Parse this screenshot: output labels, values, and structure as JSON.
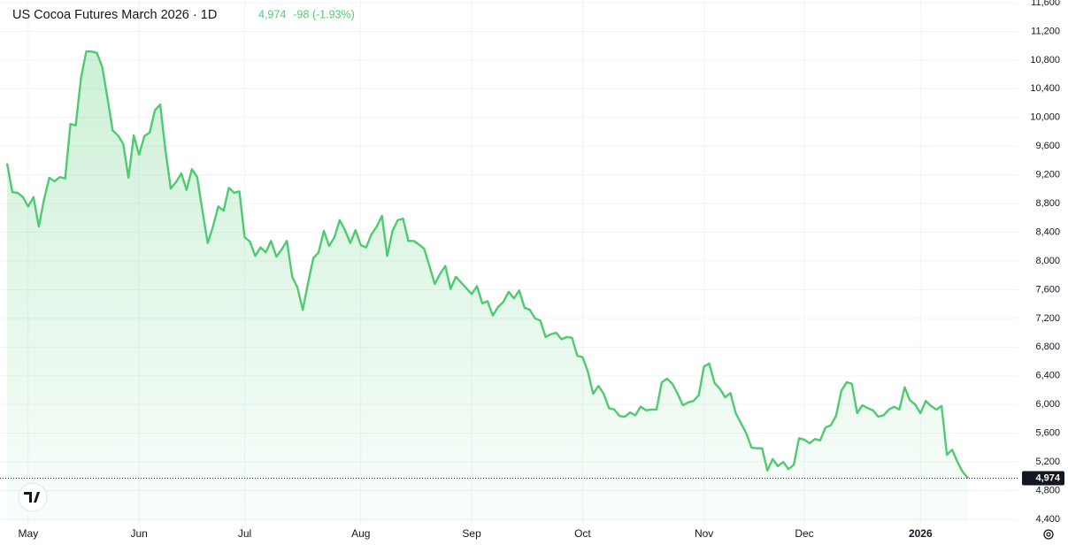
{
  "chart_data": {
    "type": "area",
    "title": "US Cocoa Futures March 2026 · 1D",
    "last_label": "4,974",
    "change_label": "-98 (-1.93%)",
    "color": "#4ecb71",
    "grid": true,
    "ylim": [
      4400,
      11600
    ],
    "yticks": [
      {
        "value": 4400,
        "label": "4,400"
      },
      {
        "value": 4800,
        "label": "4,800"
      },
      {
        "value": 5200,
        "label": "5,200"
      },
      {
        "value": 5600,
        "label": "5,600"
      },
      {
        "value": 6000,
        "label": "6,000"
      },
      {
        "value": 6400,
        "label": "6,400"
      },
      {
        "value": 6800,
        "label": "6,800"
      },
      {
        "value": 7200,
        "label": "7,200"
      },
      {
        "value": 7600,
        "label": "7,600"
      },
      {
        "value": 8000,
        "label": "8,000"
      },
      {
        "value": 8400,
        "label": "8,400"
      },
      {
        "value": 8800,
        "label": "8,800"
      },
      {
        "value": 9200,
        "label": "9,200"
      },
      {
        "value": 9600,
        "label": "9,600"
      },
      {
        "value": 10000,
        "label": "10,000"
      },
      {
        "value": 10400,
        "label": "10,400"
      },
      {
        "value": 10800,
        "label": "10,800"
      },
      {
        "value": 11200,
        "label": "11,200"
      },
      {
        "value": 11600,
        "label": "11,600"
      }
    ],
    "categories": [
      null,
      null,
      null,
      null,
      "May",
      null,
      null,
      null,
      null,
      null,
      null,
      null,
      null,
      null,
      null,
      null,
      null,
      null,
      null,
      null,
      null,
      null,
      null,
      null,
      null,
      "Jun",
      null,
      null,
      null,
      null,
      null,
      null,
      null,
      null,
      null,
      null,
      null,
      null,
      null,
      null,
      null,
      null,
      null,
      null,
      null,
      "Jul",
      null,
      null,
      null,
      null,
      null,
      null,
      null,
      null,
      null,
      null,
      null,
      null,
      null,
      null,
      null,
      null,
      null,
      null,
      null,
      null,
      null,
      "Aug",
      null,
      null,
      null,
      null,
      null,
      null,
      null,
      null,
      null,
      null,
      null,
      null,
      null,
      null,
      null,
      null,
      null,
      null,
      null,
      null,
      "Sep",
      null,
      null,
      null,
      null,
      null,
      null,
      null,
      null,
      null,
      null,
      null,
      null,
      null,
      null,
      null,
      null,
      null,
      null,
      null,
      null,
      "Oct",
      null,
      null,
      null,
      null,
      null,
      null,
      null,
      null,
      null,
      null,
      null,
      null,
      null,
      null,
      null,
      null,
      null,
      null,
      null,
      null,
      null,
      null,
      "Nov",
      null,
      null,
      null,
      null,
      null,
      null,
      null,
      null,
      null,
      null,
      null,
      null,
      null,
      null,
      null,
      null,
      null,
      null,
      "Dec",
      null,
      null,
      null,
      null,
      null,
      null,
      null,
      null,
      null,
      null,
      null,
      null,
      null,
      null,
      null,
      null,
      null,
      null,
      null,
      null,
      null,
      "2026",
      null,
      null,
      null,
      null,
      null,
      null,
      null,
      null,
      null
    ],
    "values": [
      9360,
      8960,
      8950,
      8890,
      8760,
      8890,
      8480,
      8860,
      9160,
      9110,
      9170,
      9150,
      9910,
      9890,
      10550,
      10920,
      10920,
      10900,
      10710,
      10280,
      9820,
      9750,
      9630,
      9160,
      9750,
      9480,
      9740,
      9790,
      10100,
      10180,
      9540,
      9010,
      9100,
      9220,
      8990,
      9280,
      9170,
      8700,
      8250,
      8480,
      8760,
      8700,
      9020,
      8950,
      8970,
      8330,
      8270,
      8070,
      8190,
      8120,
      8280,
      8060,
      8160,
      8280,
      7780,
      7630,
      7320,
      7690,
      8040,
      8120,
      8420,
      8210,
      8330,
      8570,
      8430,
      8250,
      8430,
      8220,
      8190,
      8370,
      8480,
      8630,
      8070,
      8420,
      8570,
      8590,
      8280,
      8280,
      8230,
      8170,
      7930,
      7680,
      7820,
      7930,
      7610,
      7780,
      7700,
      7620,
      7540,
      7650,
      7410,
      7440,
      7240,
      7360,
      7430,
      7570,
      7480,
      7590,
      7350,
      7320,
      7200,
      7170,
      6940,
      6980,
      7000,
      6910,
      6940,
      6930,
      6680,
      6660,
      6460,
      6150,
      6260,
      6150,
      5950,
      5930,
      5840,
      5830,
      5890,
      5850,
      5970,
      5920,
      5930,
      5930,
      6310,
      6360,
      6290,
      6150,
      5990,
      6030,
      6050,
      6130,
      6530,
      6570,
      6300,
      6220,
      6100,
      6160,
      5880,
      5740,
      5600,
      5400,
      5390,
      5390,
      5080,
      5240,
      5140,
      5200,
      5100,
      5160,
      5530,
      5510,
      5460,
      5520,
      5500,
      5680,
      5710,
      5840,
      6190,
      6310,
      6290,
      5880,
      5990,
      5950,
      5920,
      5830,
      5850,
      5930,
      5970,
      5930,
      6240,
      6060,
      6000,
      5880,
      6050,
      5980,
      5930,
      5980,
      5300,
      5370,
      5200,
      5060,
      4974
    ]
  }
}
